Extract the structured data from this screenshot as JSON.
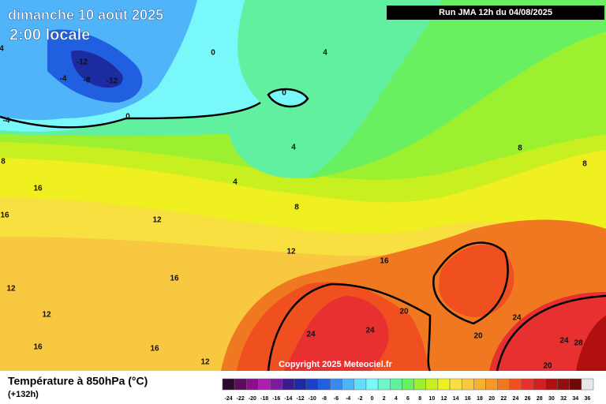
{
  "header": {
    "title": "dimanche 10 août 2025",
    "subtitle": "2:00 locale",
    "run": "Run JMA 12h du 04/08/2025"
  },
  "footer": {
    "variable": "Température à 850hPa (°C)",
    "lead": "(+132h)",
    "copyright": "Copyright 2025 Meteociel.fr"
  },
  "colorbar": {
    "labels": [
      -24,
      -22,
      -20,
      -18,
      -16,
      -14,
      -12,
      -10,
      -8,
      -6,
      -4,
      -2,
      0,
      2,
      4,
      6,
      8,
      10,
      12,
      14,
      16,
      18,
      20,
      22,
      24,
      26,
      28,
      30,
      32,
      34,
      36
    ],
    "colors": [
      "#2d0a2d",
      "#5c0d5c",
      "#8b0e8b",
      "#b01eb0",
      "#7a1c9c",
      "#3c1c8c",
      "#1c2ca0",
      "#1c40c8",
      "#2060e0",
      "#3c88f0",
      "#50b4f8",
      "#64dcfc",
      "#78f8f8",
      "#6cf8c8",
      "#60f0a0",
      "#68f060",
      "#9cf030",
      "#c8f020",
      "#f0f020",
      "#f8e040",
      "#f8c840",
      "#f8b030",
      "#f89828",
      "#f07820",
      "#f05020",
      "#e83030",
      "#d02020",
      "#b01010",
      "#901010",
      "#700808",
      "#e8e8e8"
    ]
  },
  "map_labels": [
    -12,
    -8,
    -12,
    -4,
    -4,
    4,
    0,
    0,
    0,
    4,
    4,
    4,
    8,
    8,
    8,
    8,
    16,
    16,
    12,
    12,
    16,
    16,
    12,
    12,
    16,
    16,
    12,
    24,
    24,
    20,
    20,
    24,
    24,
    28,
    20
  ]
}
